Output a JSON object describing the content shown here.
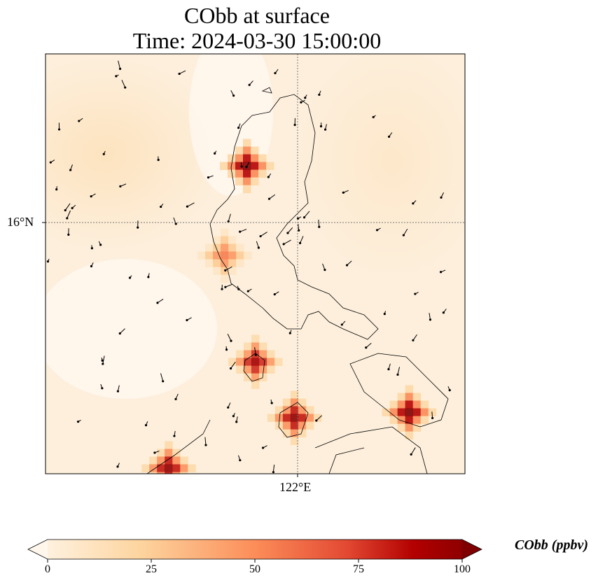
{
  "title": {
    "line1": "CObb at surface",
    "line2": "Time: 2024-03-30 15:00:00"
  },
  "axes": {
    "lat_tick": "16°N",
    "lon_tick": "122°E",
    "lat_value": 16,
    "lon_value": 122,
    "lon_range": [
      117.5,
      125.0
    ],
    "lat_range": [
      11.5,
      19.0
    ]
  },
  "colorbar": {
    "label": "CObb (ppbv)",
    "ticks": [
      "0",
      "25",
      "50",
      "75",
      "100"
    ],
    "range": [
      0,
      100
    ],
    "colors": [
      "#fff7ec",
      "#fdd49e",
      "#fc8d59",
      "#d7301f",
      "#b30000",
      "#7f0000"
    ]
  },
  "chart_data": {
    "type": "heatmap",
    "variable": "CObb",
    "units": "ppbv",
    "background_value": 8,
    "hotspots": [
      {
        "lon": 121.1,
        "lat": 17.0,
        "value": 100
      },
      {
        "lon": 120.7,
        "lat": 15.4,
        "value": 55
      },
      {
        "lon": 121.25,
        "lat": 13.5,
        "value": 90
      },
      {
        "lon": 121.95,
        "lat": 12.5,
        "value": 95
      },
      {
        "lon": 124.0,
        "lat": 12.6,
        "value": 100
      },
      {
        "lon": 119.7,
        "lat": 11.6,
        "value": 95
      }
    ]
  }
}
